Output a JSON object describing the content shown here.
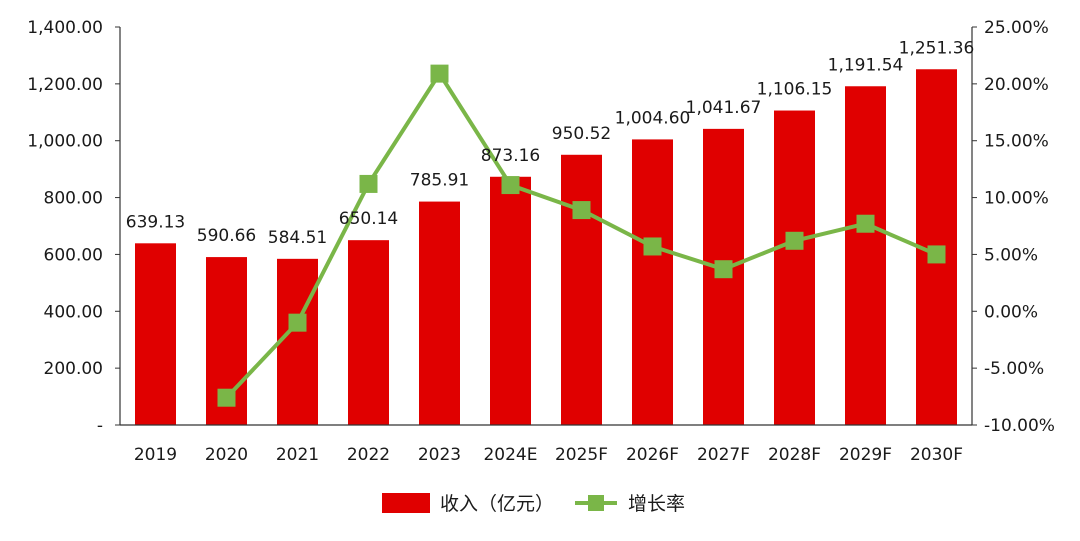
{
  "chart_data": {
    "type": "bar",
    "categories": [
      "2019",
      "2020",
      "2021",
      "2022",
      "2023",
      "2024E",
      "2025F",
      "2026F",
      "2027F",
      "2028F",
      "2029F",
      "2030F"
    ],
    "series": [
      {
        "name": "收入（亿元）",
        "kind": "bar",
        "axis": "left",
        "values": [
          639.13,
          590.66,
          584.51,
          650.14,
          785.91,
          873.16,
          950.52,
          1004.6,
          1041.67,
          1106.15,
          1191.54,
          1251.36
        ],
        "labels": [
          "639.13",
          "590.66",
          "584.51",
          "650.14",
          "785.91",
          "873.16",
          "950.52",
          "1,004.60",
          "1,041.67",
          "1,106.15",
          "1,191.54",
          "1,251.36"
        ]
      },
      {
        "name": "增长率",
        "kind": "line",
        "axis": "right",
        "values": [
          null,
          -7.6,
          -1.0,
          11.2,
          20.9,
          11.1,
          8.9,
          5.7,
          3.7,
          6.2,
          7.7,
          5.0
        ]
      }
    ],
    "y_left": {
      "min": 0,
      "max": 1400,
      "step": 200,
      "tick_labels": [
        "-",
        "200.00",
        "400.00",
        "600.00",
        "800.00",
        "1,000.00",
        "1,200.00",
        "1,400.00"
      ]
    },
    "y_right": {
      "min": -10,
      "max": 25,
      "step": 5,
      "tick_labels": [
        "-10.00%",
        "-5.00%",
        "0.00%",
        "5.00%",
        "10.00%",
        "15.00%",
        "20.00%",
        "25.00%"
      ]
    },
    "title": "",
    "xlabel": "",
    "ylabel": "",
    "grid": false,
    "legend_position": "bottom-center"
  },
  "colors": {
    "bar": "#e00000",
    "line": "#7ab648",
    "marker": "#7ab648",
    "axis": "#333333",
    "text": "#1a1a1a"
  }
}
